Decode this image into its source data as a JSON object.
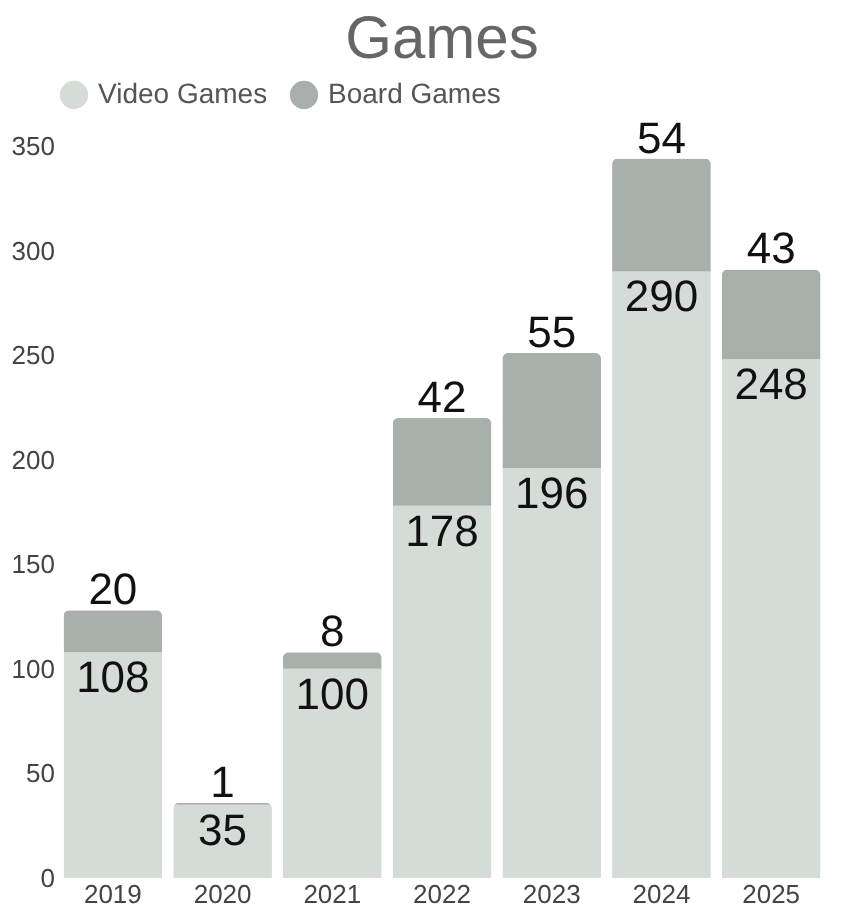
{
  "chart_data": {
    "type": "bar",
    "title": "Games",
    "stacked": true,
    "data_labels": true,
    "legend": "top",
    "grid": false,
    "categories": [
      "2019",
      "2020",
      "2021",
      "2022",
      "2023",
      "2024",
      "2025"
    ],
    "series": [
      {
        "name": "Video Games",
        "color": "#d5dcd8",
        "values": [
          108,
          35,
          100,
          178,
          196,
          290,
          248
        ]
      },
      {
        "name": "Board Games",
        "color": "#a9b0ac",
        "values": [
          20,
          1,
          8,
          42,
          55,
          54,
          43
        ]
      }
    ],
    "ylim": [
      0,
      350
    ],
    "yticks": [
      0,
      50,
      100,
      150,
      200,
      250,
      300,
      350
    ]
  }
}
